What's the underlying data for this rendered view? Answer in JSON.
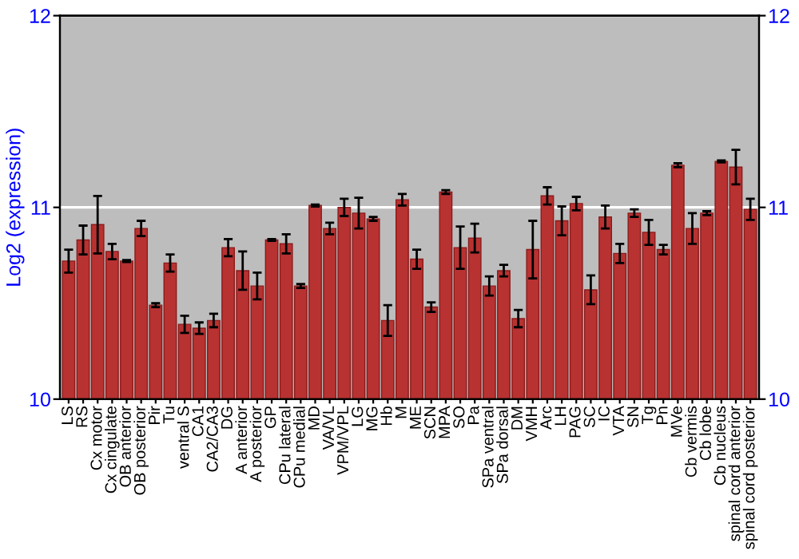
{
  "chart_data": {
    "type": "bar",
    "ylabel": "Log2 (expression)",
    "categories": [
      "LS",
      "RS",
      "Cx motor",
      "Cx cingulate",
      "OB anterior",
      "OB posterior",
      "Pir",
      "Tu",
      "ventral S",
      "CA1",
      "CA2/CA3",
      "DG",
      "A anterior",
      "A posterior",
      "GP",
      "CPu lateral",
      "CPu medial",
      "MD",
      "VA/VL",
      "VPM/VPL",
      "LG",
      "MG",
      "Hb",
      "M",
      "ME",
      "SCN",
      "MPA",
      "SO",
      "Pa",
      "SPa ventral",
      "SPa dorsal",
      "DM",
      "VMH",
      "Arc",
      "LH",
      "PAG",
      "SC",
      "IC",
      "VTA",
      "SN",
      "Tg",
      "Pn",
      "MVe",
      "Cb vermis",
      "Cb lobe",
      "Cb nucleus",
      "spinal cord anterior",
      "spinal cord posterior"
    ],
    "values": [
      10.72,
      10.83,
      10.91,
      10.77,
      10.72,
      10.89,
      10.49,
      10.71,
      10.39,
      10.37,
      10.41,
      10.79,
      10.67,
      10.59,
      10.83,
      10.81,
      10.59,
      11.01,
      10.89,
      11.0,
      10.97,
      10.94,
      10.41,
      11.04,
      10.73,
      10.48,
      11.08,
      10.79,
      10.84,
      10.59,
      10.67,
      10.42,
      10.78,
      11.06,
      10.93,
      11.02,
      10.57,
      10.95,
      10.76,
      10.97,
      10.87,
      10.78,
      11.22,
      10.89,
      10.97,
      11.24,
      11.21,
      10.99
    ],
    "errors": [
      0.06,
      0.075,
      0.15,
      0.04,
      0.005,
      0.04,
      0.01,
      0.045,
      0.045,
      0.03,
      0.035,
      0.045,
      0.1,
      0.07,
      0.005,
      0.05,
      0.01,
      0.005,
      0.03,
      0.045,
      0.08,
      0.01,
      0.08,
      0.03,
      0.05,
      0.025,
      0.01,
      0.11,
      0.075,
      0.05,
      0.03,
      0.045,
      0.15,
      0.045,
      0.075,
      0.035,
      0.075,
      0.06,
      0.05,
      0.02,
      0.065,
      0.025,
      0.01,
      0.08,
      0.01,
      0.005,
      0.09,
      0.055
    ],
    "color": "#b83232",
    "ylim": [
      10,
      12
    ],
    "yticks": [
      10,
      11,
      12
    ],
    "y2lim": [
      10,
      12
    ],
    "y2ticks": [
      10,
      11,
      12
    ],
    "grid": "y"
  }
}
